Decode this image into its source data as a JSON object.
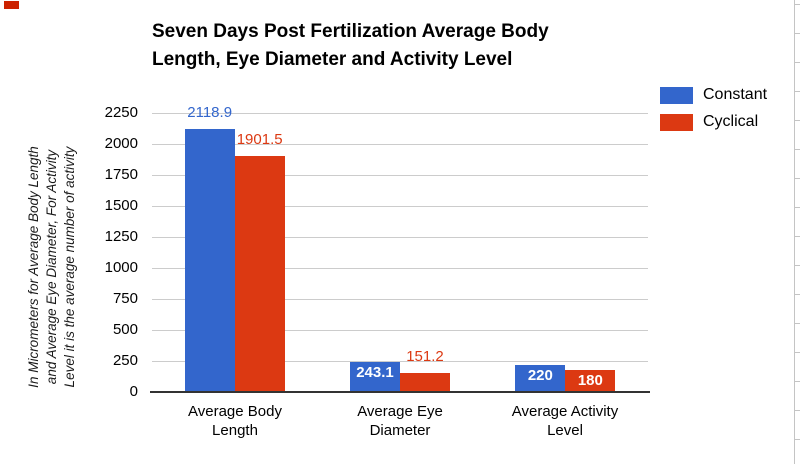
{
  "chart_data": {
    "type": "bar",
    "title": "Seven Days Post Fertilization Average Body Length, Eye Diameter and Activity Level",
    "title_lines": [
      "Seven Days Post Fertilization Average Body",
      "Length, Eye Diameter and Activity Level"
    ],
    "ylabel": "In Micrometers for Average Body Length and Average Eye Diameter, For Activity Level it is the average number of activity",
    "ylabel_lines": [
      "In Micrometers for Average Body Length",
      "and Average Eye Diameter, For Activity",
      "Level it is the average number of activity"
    ],
    "xlabel": "",
    "categories": [
      "Average Body Length",
      "Average Eye Diameter",
      "Average Activity Level"
    ],
    "series": [
      {
        "name": "Constant",
        "color": "#3366cc",
        "values": [
          2118.9,
          243.1,
          220
        ],
        "labels": [
          "2118.9",
          "243.1",
          "220"
        ],
        "label_placement": [
          "above",
          "inside",
          "inside"
        ]
      },
      {
        "name": "Cyclical",
        "color": "#dc3912",
        "values": [
          1901.5,
          151.2,
          180
        ],
        "labels": [
          "1901.5",
          "151.2",
          "180"
        ],
        "label_placement": [
          "above",
          "above",
          "inside"
        ]
      }
    ],
    "yticks": [
      0,
      250,
      500,
      750,
      1000,
      1250,
      1500,
      1750,
      2000,
      2250
    ],
    "ylim": [
      0,
      2250
    ],
    "grid": true,
    "legend_position": "right"
  },
  "legend": {
    "items": [
      {
        "label": "Constant",
        "color": "#3366cc"
      },
      {
        "label": "Cyclical",
        "color": "#dc3912"
      }
    ]
  },
  "decorations": {
    "corner_marker_color": "#cc2200",
    "gridline_color": "#cccccc",
    "axis_line_color": "#333333",
    "sheet_gridline_color": "#c4c4c4"
  }
}
